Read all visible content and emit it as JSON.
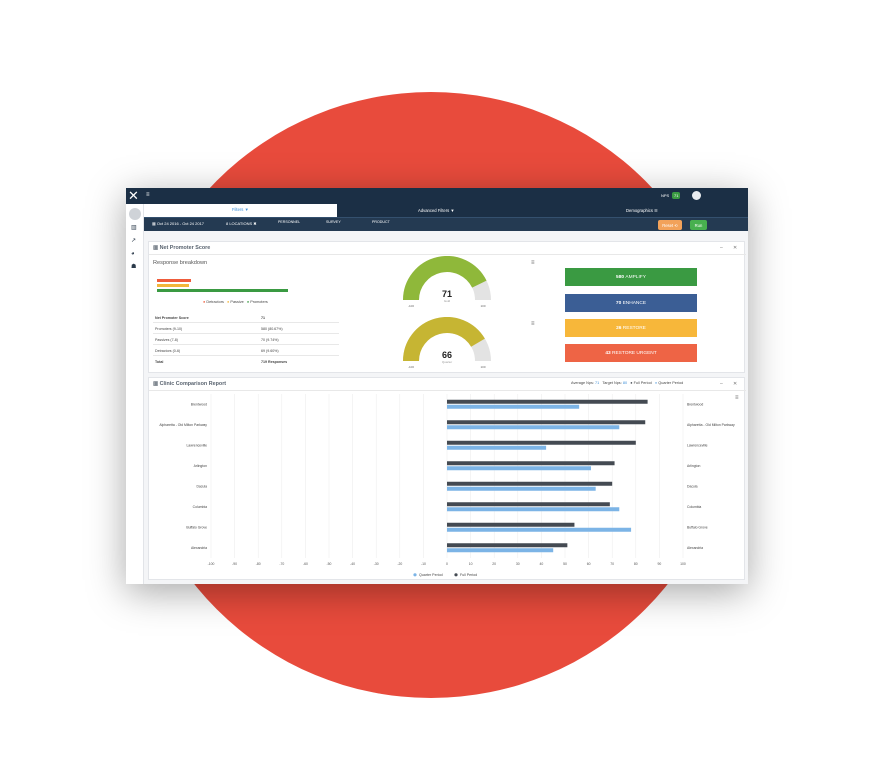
{
  "colors": {
    "bg_circle": "#e84b3c",
    "nav": "#1b2f45",
    "promoter": "#3a9a42",
    "passive": "#f3b63a",
    "detractor": "#ef5c3b",
    "quarter": "#7cb4e6",
    "full": "#444a52"
  },
  "topbar": {
    "menu_icon": "hamburger-icon",
    "nps_label": "NPS",
    "nps_value": "71"
  },
  "filters": {
    "filters_tab": "Filters ▼",
    "advanced": "Advanced Filters ▼",
    "demographics": "Demographics ☰"
  },
  "subbar": {
    "date_range": "▦ Oct 24 2016 - Oct 24 2017",
    "locations": "8 LOCATIONS ✖",
    "personnel": "PERSONNEL",
    "survey": "SURVEY",
    "product": "PRODUCT",
    "reset": "Reset ⟲",
    "run": "Run"
  },
  "nps_panel": {
    "title": "Net Promoter Score",
    "subtitle": "Response breakdown",
    "legend": [
      "Detractors",
      "Passive",
      "Promoters"
    ],
    "bars": {
      "promoters_pct": 80.67,
      "passive_pct": 9.74,
      "detractors_pct": 9.6
    },
    "table": [
      {
        "label": "Net Promoter Score",
        "value": "71"
      },
      {
        "label": "Promoters (9-10)",
        "value": "580 (80.67%)"
      },
      {
        "label": "Passives (7-8)",
        "value": "70 (9.74%)"
      },
      {
        "label": "Detractors (0-6)",
        "value": "69 (9.60%)"
      },
      {
        "label": "Total",
        "value": "719 Responses"
      }
    ],
    "gauges": [
      {
        "value": 71,
        "label": "Gold",
        "min": "-100",
        "max": "100",
        "color": "#8fb83a"
      },
      {
        "value": 66,
        "label": "Quarter",
        "min": "-100",
        "max": "100",
        "color": "#c6b533"
      }
    ],
    "actions": [
      {
        "count": "580",
        "label": "AMPLIFY",
        "color": "#3a9a42"
      },
      {
        "count": "70",
        "label": "ENHANCE",
        "color": "#3b5e95"
      },
      {
        "count": "26",
        "label": "RESTORE",
        "color": "#f7b73a"
      },
      {
        "count": "43",
        "label": "RESTORE URGENT",
        "color": "#ee6445"
      }
    ]
  },
  "clinic_panel": {
    "title": "Clinic Comparison Report",
    "avg_label": "Average Nps:",
    "avg_value": "71",
    "target_label": "Target Nps:",
    "target_value": "80",
    "legend_full": "Full Period",
    "legend_quarter": "Quarter Period"
  },
  "chart_data": {
    "type": "bar",
    "orientation": "horizontal",
    "categories": [
      "Brentwood",
      "Alpharetta - Old Milton Parkway",
      "Lawrenceville",
      "Arlington",
      "Dacula",
      "Columbia",
      "Buffalo Grove",
      "Alexandria"
    ],
    "series": [
      {
        "name": "Full Period",
        "values": [
          85,
          84,
          80,
          71,
          70,
          69,
          54,
          51
        ]
      },
      {
        "name": "Quarter Period",
        "values": [
          56,
          73,
          42,
          61,
          63,
          73,
          78,
          45
        ]
      }
    ],
    "xticks": [
      "-100",
      "-90",
      "-80",
      "-70",
      "-60",
      "-50",
      "-40",
      "-30",
      "-20",
      "-10",
      "0",
      "10",
      "20",
      "30",
      "40",
      "50",
      "60",
      "70",
      "80",
      "90",
      "100"
    ],
    "xlim": [
      -100,
      100
    ],
    "legend": [
      "Quarter Period",
      "Full Period"
    ]
  }
}
